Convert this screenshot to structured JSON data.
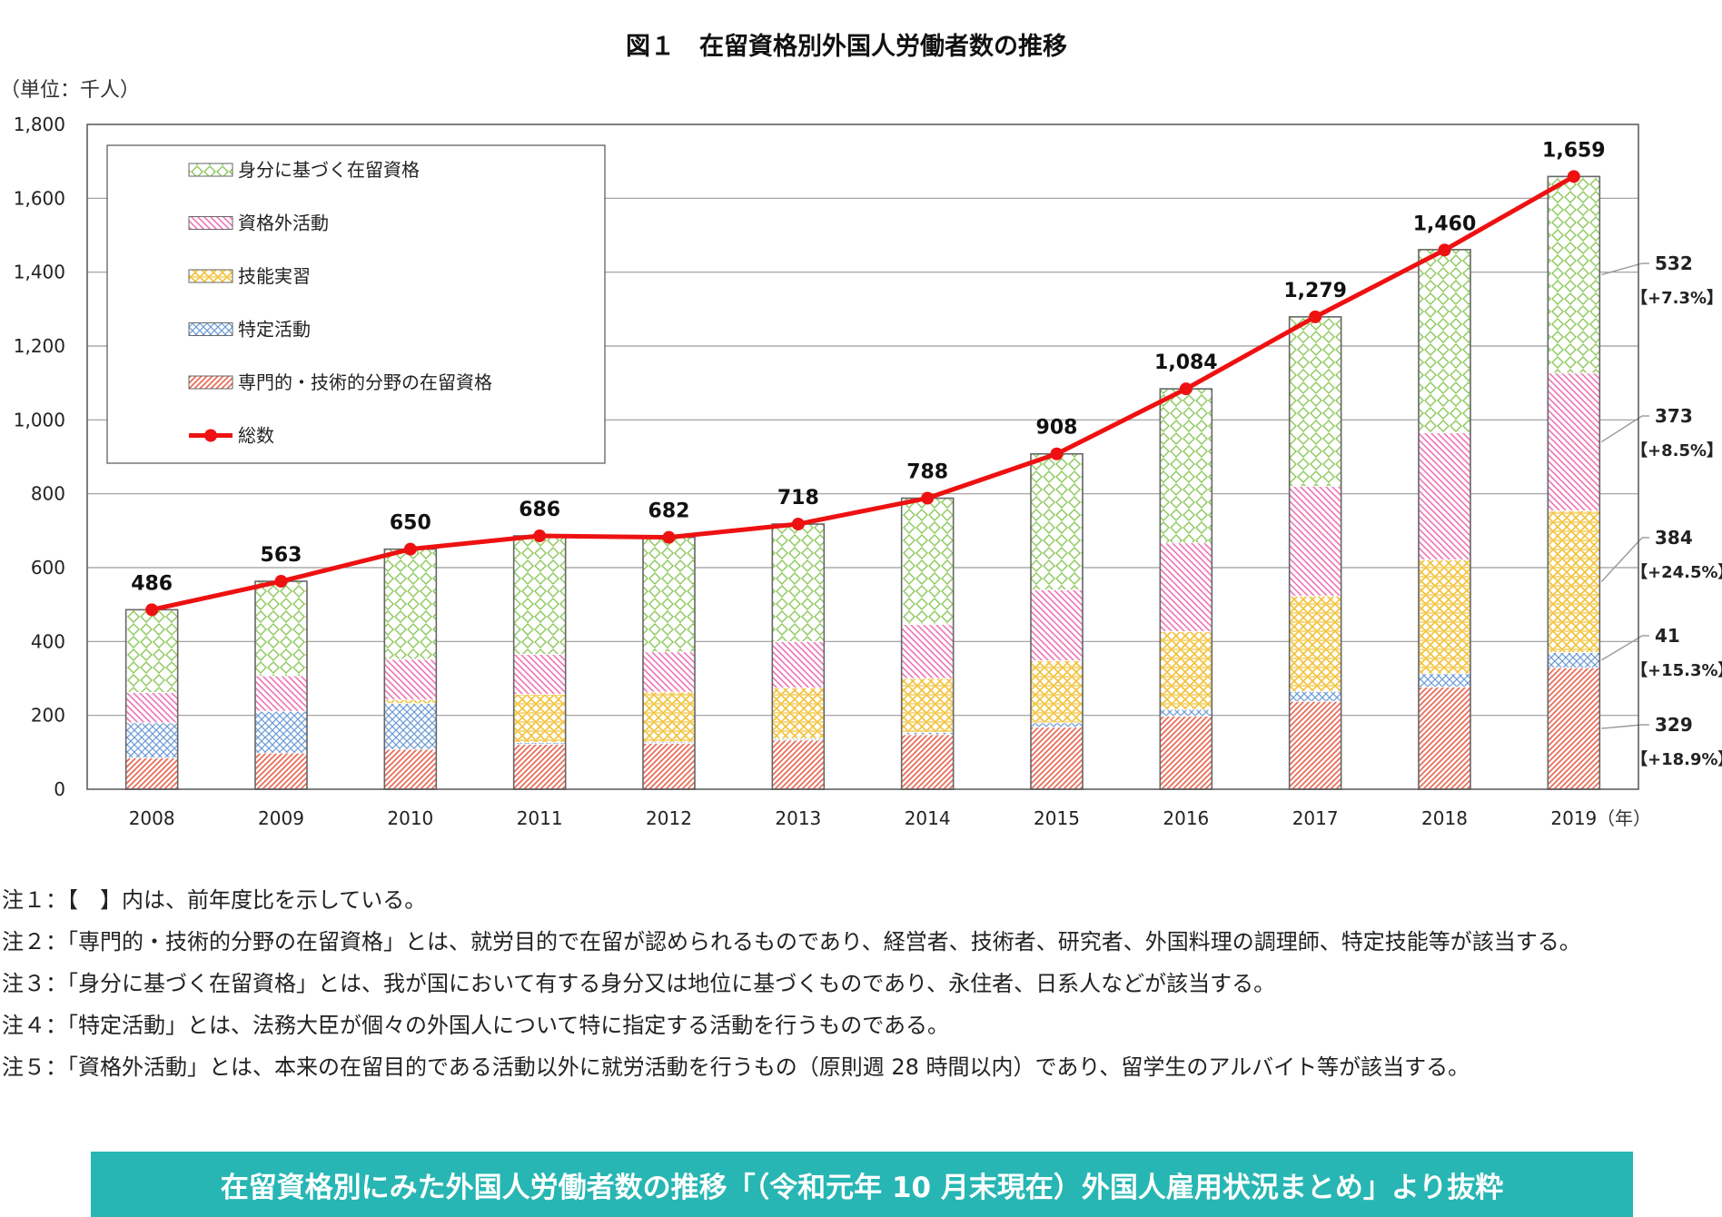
{
  "chart_data": {
    "type": "bar",
    "stacked": true,
    "title": "図１　在留資格別外国人労働者数の推移",
    "unit_label": "（単位：千人）",
    "x_unit": "（年）",
    "categories": [
      "2008",
      "2009",
      "2010",
      "2011",
      "2012",
      "2013",
      "2014",
      "2015",
      "2016",
      "2017",
      "2018",
      "2019"
    ],
    "ylim": [
      0,
      1800
    ],
    "yticks": [
      "0",
      "200",
      "400",
      "600",
      "800",
      "1,000",
      "1,200",
      "1,400",
      "1,600",
      "1,800"
    ],
    "grid": true,
    "legend_position": "top-left",
    "series": [
      {
        "name": "専門的・技術的分野の在留資格",
        "color": "#e8624c",
        "pattern": "hatch",
        "values": [
          85,
          98,
          108,
          122,
          124,
          133,
          148,
          168,
          198,
          238,
          277,
          329
        ]
      },
      {
        "name": "特定活動",
        "color": "#6a9ad6",
        "pattern": "cross",
        "values": [
          95,
          113,
          124,
          5,
          4,
          4,
          6,
          12,
          18,
          27,
          36,
          41
        ]
      },
      {
        "name": "技能実習",
        "color": "#f2c238",
        "pattern": "weave",
        "values": [
          0,
          0,
          10,
          130,
          135,
          137,
          146,
          168,
          211,
          258,
          308,
          384
        ]
      },
      {
        "name": "資格外活動",
        "color": "#ee74b7",
        "pattern": "diag",
        "values": [
          82,
          96,
          110,
          108,
          109,
          126,
          146,
          192,
          240,
          297,
          344,
          373
        ]
      },
      {
        "name": "身分に基づく在留資格",
        "color": "#8cc85a",
        "pattern": "diamond",
        "values": [
          224,
          256,
          298,
          321,
          310,
          318,
          342,
          368,
          417,
          459,
          496,
          532
        ]
      }
    ],
    "total": {
      "name": "総数",
      "color": "#ee1111",
      "values": [
        486,
        563,
        650,
        686,
        682,
        718,
        788,
        908,
        1084,
        1279,
        1460,
        1659
      ],
      "labels": [
        "486",
        "563",
        "650",
        "686",
        "682",
        "718",
        "788",
        "908",
        "1,084",
        "1,279",
        "1,460",
        "1,659"
      ]
    },
    "annotations": [
      {
        "series": "身分に基づく在留資格",
        "value": "532",
        "change": "【+7.3%】"
      },
      {
        "series": "資格外活動",
        "value": "373",
        "change": "【+8.5%】"
      },
      {
        "series": "技能実習",
        "value": "384",
        "change": "【+24.5%】"
      },
      {
        "series": "特定活動",
        "value": "41",
        "change": "【+15.3%】"
      },
      {
        "series": "専門的・技術的分野の在留資格",
        "value": "329",
        "change": "【+18.9%】"
      }
    ]
  },
  "notes": [
    "注１：【　】内は、前年度比を示している。",
    "注２：「専門的・技術的分野の在留資格」とは、就労目的で在留が認められるものであり、経営者、技術者、研究者、外国料理の調理師、特定技能等が該当する。",
    "注３：「身分に基づく在留資格」とは、我が国において有する身分又は地位に基づくものであり、永住者、日系人などが該当する。",
    "注４：「特定活動」とは、法務大臣が個々の外国人について特に指定する活動を行うものである。",
    "注５：「資格外活動」とは、本来の在留目的である活動以外に就労活動を行うもの（原則週 28 時間以内）であり、留学生のアルバイト等が該当する。"
  ],
  "banner": "在留資格別にみた外国人労働者数の推移「（令和元年 10 月末現在）外国人雇用状況まとめ」より抜粋"
}
